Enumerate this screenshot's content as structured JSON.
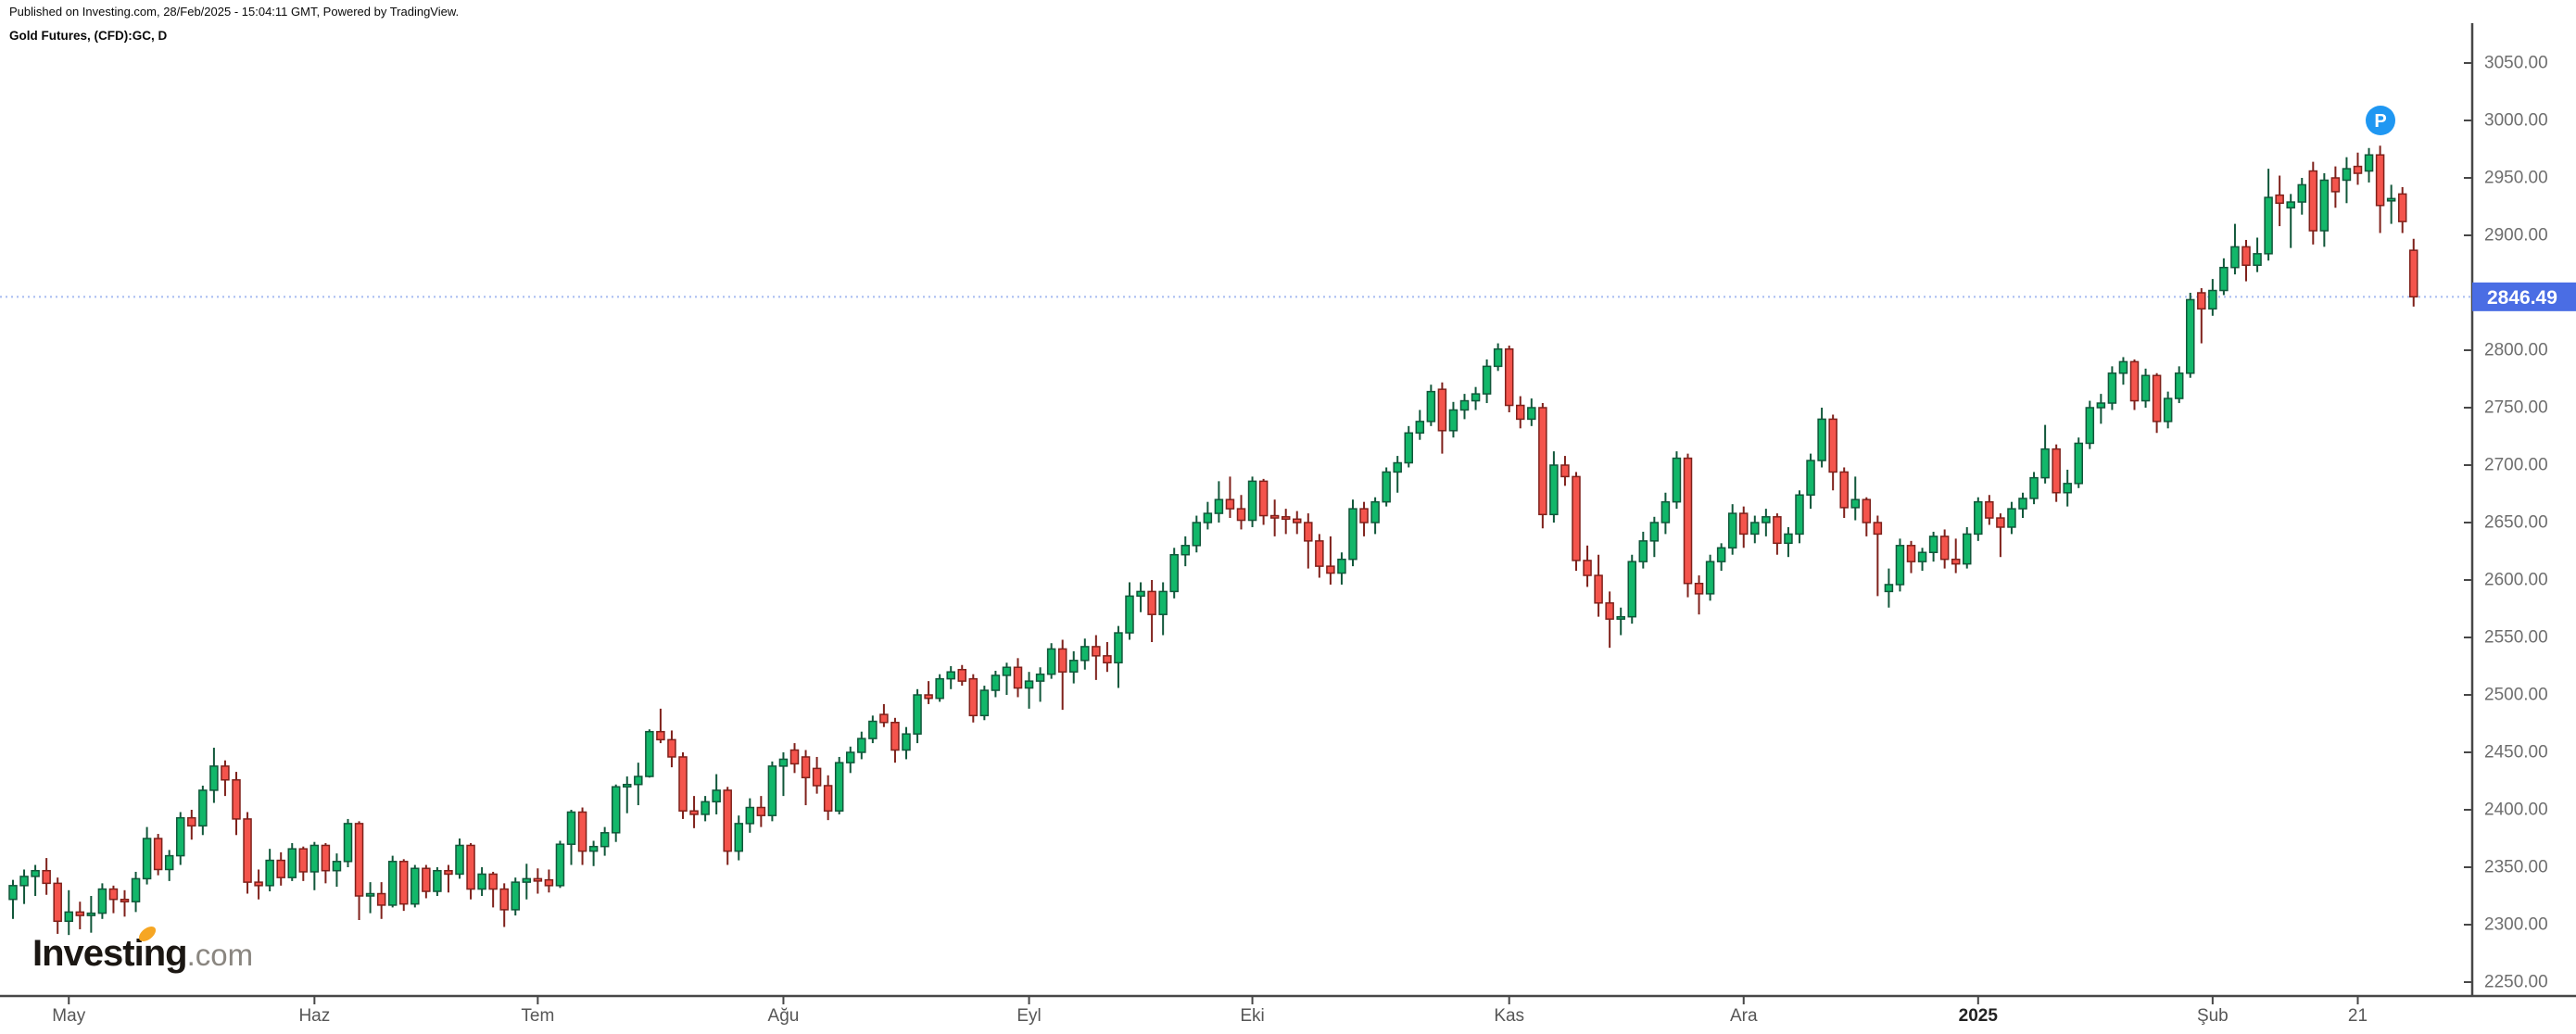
{
  "header": {
    "published": "Published on Investing.com, 28/Feb/2025 - 15:04:11 GMT, Powered by TradingView.",
    "instrument": "Gold Futures, (CFD):GC, D"
  },
  "watermark": {
    "brand": "Investing",
    "suffix": ".com",
    "accent_color": "#f6a623"
  },
  "marker": {
    "label": "P"
  },
  "price_line": {
    "label": "2846.49",
    "price": 2846.49
  },
  "y_axis": {
    "labels": [
      "3050.00",
      "3000.00",
      "2950.00",
      "2900.00",
      "2800.00",
      "2750.00",
      "2700.00",
      "2650.00",
      "2600.00",
      "2550.00",
      "2500.00",
      "2450.00",
      "2400.00",
      "2350.00",
      "2300.00",
      "2250.00"
    ]
  },
  "x_axis": {
    "ticks": [
      {
        "label": "May",
        "index": 5,
        "bold": false
      },
      {
        "label": "Haz",
        "index": 27,
        "bold": false
      },
      {
        "label": "Tem",
        "index": 47,
        "bold": false
      },
      {
        "label": "Ağu",
        "index": 69,
        "bold": false
      },
      {
        "label": "Eyl",
        "index": 91,
        "bold": false
      },
      {
        "label": "Eki",
        "index": 111,
        "bold": false
      },
      {
        "label": "Kas",
        "index": 134,
        "bold": false
      },
      {
        "label": "Ara",
        "index": 155,
        "bold": false
      },
      {
        "label": "2025",
        "index": 176,
        "bold": true
      },
      {
        "label": "Şub",
        "index": 197,
        "bold": false
      },
      {
        "label": "21",
        "index": 210,
        "bold": false
      }
    ]
  },
  "colors": {
    "up": {
      "fill": "#12b76a",
      "stroke": "#11573a"
    },
    "down": {
      "fill": "#f4544c",
      "stroke": "#7f211b"
    },
    "axis_line": "#474747",
    "axis_text": "#6e6e6e",
    "month_text": "#565656",
    "year_text": "#222222",
    "price_line": "#a6bbf0",
    "price_label_bg": "#4a6de4",
    "price_label_text": "#ffffff",
    "marker_bg": "#1f97f2",
    "marker_text": "#ffffff",
    "logo_main": "#1b1713",
    "logo_suffix": "#8a8680",
    "header_text": "#0a0a0a"
  },
  "chart_data": {
    "type": "candlestick",
    "symbol": "Gold Futures (CFD):GC",
    "interval": "D",
    "last_price": 2846.49,
    "ylim": [
      2250,
      3050
    ],
    "y_tick_step": 50,
    "x_tick_labels": [
      "May",
      "Haz",
      "Tem",
      "Ağu",
      "Eyl",
      "Eki",
      "Kas",
      "Ara",
      "2025",
      "Şub",
      "21"
    ],
    "legend_position": "none",
    "grid": false,
    "candles": [
      [
        2322,
        2339,
        2305,
        2334
      ],
      [
        2334,
        2348,
        2318,
        2342
      ],
      [
        2342,
        2352,
        2325,
        2347
      ],
      [
        2347,
        2358,
        2326,
        2336
      ],
      [
        2336,
        2341,
        2292,
        2303
      ],
      [
        2303,
        2330,
        2291,
        2311
      ],
      [
        2311,
        2320,
        2296,
        2308
      ],
      [
        2308,
        2325,
        2293,
        2310
      ],
      [
        2310,
        2336,
        2305,
        2331
      ],
      [
        2331,
        2334,
        2310,
        2322
      ],
      [
        2322,
        2330,
        2307,
        2320
      ],
      [
        2320,
        2346,
        2311,
        2340
      ],
      [
        2340,
        2385,
        2335,
        2375
      ],
      [
        2375,
        2379,
        2343,
        2348
      ],
      [
        2348,
        2365,
        2338,
        2360
      ],
      [
        2360,
        2398,
        2352,
        2393
      ],
      [
        2393,
        2400,
        2374,
        2386
      ],
      [
        2386,
        2421,
        2378,
        2417
      ],
      [
        2417,
        2454,
        2406,
        2438
      ],
      [
        2438,
        2443,
        2412,
        2426
      ],
      [
        2426,
        2433,
        2378,
        2392
      ],
      [
        2392,
        2398,
        2327,
        2337
      ],
      [
        2337,
        2348,
        2322,
        2334
      ],
      [
        2334,
        2366,
        2329,
        2356
      ],
      [
        2356,
        2363,
        2334,
        2341
      ],
      [
        2341,
        2371,
        2338,
        2366
      ],
      [
        2366,
        2368,
        2338,
        2346
      ],
      [
        2346,
        2372,
        2330,
        2369
      ],
      [
        2369,
        2371,
        2336,
        2347
      ],
      [
        2347,
        2362,
        2333,
        2355
      ],
      [
        2355,
        2392,
        2350,
        2388
      ],
      [
        2388,
        2390,
        2304,
        2325
      ],
      [
        2325,
        2337,
        2310,
        2327
      ],
      [
        2327,
        2337,
        2305,
        2317
      ],
      [
        2317,
        2360,
        2315,
        2355
      ],
      [
        2355,
        2357,
        2312,
        2318
      ],
      [
        2318,
        2352,
        2315,
        2349
      ],
      [
        2349,
        2352,
        2323,
        2329
      ],
      [
        2329,
        2350,
        2325,
        2347
      ],
      [
        2347,
        2352,
        2328,
        2344
      ],
      [
        2344,
        2375,
        2340,
        2369
      ],
      [
        2369,
        2371,
        2322,
        2331
      ],
      [
        2331,
        2350,
        2325,
        2344
      ],
      [
        2344,
        2346,
        2315,
        2331
      ],
      [
        2331,
        2336,
        2298,
        2313
      ],
      [
        2313,
        2341,
        2308,
        2337
      ],
      [
        2337,
        2353,
        2322,
        2340
      ],
      [
        2340,
        2349,
        2327,
        2339
      ],
      [
        2339,
        2348,
        2328,
        2334
      ],
      [
        2334,
        2373,
        2332,
        2370
      ],
      [
        2370,
        2400,
        2352,
        2398
      ],
      [
        2398,
        2402,
        2352,
        2364
      ],
      [
        2364,
        2373,
        2351,
        2368
      ],
      [
        2368,
        2385,
        2360,
        2380
      ],
      [
        2380,
        2422,
        2372,
        2420
      ],
      [
        2420,
        2429,
        2397,
        2422
      ],
      [
        2422,
        2441,
        2404,
        2429
      ],
      [
        2429,
        2470,
        2428,
        2468
      ],
      [
        2468,
        2488,
        2458,
        2461
      ],
      [
        2461,
        2469,
        2437,
        2446
      ],
      [
        2446,
        2450,
        2392,
        2399
      ],
      [
        2399,
        2412,
        2384,
        2396
      ],
      [
        2396,
        2412,
        2390,
        2407
      ],
      [
        2407,
        2431,
        2396,
        2417
      ],
      [
        2417,
        2420,
        2352,
        2364
      ],
      [
        2364,
        2395,
        2356,
        2388
      ],
      [
        2388,
        2410,
        2380,
        2402
      ],
      [
        2402,
        2412,
        2385,
        2395
      ],
      [
        2395,
        2442,
        2390,
        2438
      ],
      [
        2438,
        2450,
        2412,
        2444
      ],
      [
        2452,
        2458,
        2432,
        2440
      ],
      [
        2446,
        2452,
        2404,
        2428
      ],
      [
        2436,
        2446,
        2414,
        2421
      ],
      [
        2421,
        2430,
        2391,
        2399
      ],
      [
        2399,
        2446,
        2396,
        2441
      ],
      [
        2441,
        2455,
        2432,
        2450
      ],
      [
        2450,
        2468,
        2444,
        2462
      ],
      [
        2462,
        2482,
        2458,
        2477
      ],
      [
        2483,
        2492,
        2472,
        2476
      ],
      [
        2476,
        2480,
        2441,
        2452
      ],
      [
        2452,
        2472,
        2444,
        2466
      ],
      [
        2466,
        2505,
        2458,
        2500
      ],
      [
        2500,
        2512,
        2492,
        2497
      ],
      [
        2497,
        2518,
        2494,
        2514
      ],
      [
        2514,
        2525,
        2505,
        2520
      ],
      [
        2522,
        2526,
        2508,
        2512
      ],
      [
        2514,
        2518,
        2476,
        2482
      ],
      [
        2482,
        2508,
        2478,
        2504
      ],
      [
        2504,
        2521,
        2498,
        2517
      ],
      [
        2517,
        2528,
        2500,
        2524
      ],
      [
        2524,
        2532,
        2498,
        2506
      ],
      [
        2506,
        2520,
        2488,
        2512
      ],
      [
        2512,
        2524,
        2494,
        2518
      ],
      [
        2518,
        2545,
        2514,
        2540
      ],
      [
        2540,
        2548,
        2487,
        2520
      ],
      [
        2520,
        2538,
        2510,
        2530
      ],
      [
        2530,
        2549,
        2522,
        2542
      ],
      [
        2542,
        2552,
        2513,
        2534
      ],
      [
        2534,
        2546,
        2520,
        2528
      ],
      [
        2528,
        2560,
        2506,
        2554
      ],
      [
        2554,
        2598,
        2548,
        2586
      ],
      [
        2586,
        2598,
        2572,
        2590
      ],
      [
        2590,
        2600,
        2546,
        2570
      ],
      [
        2570,
        2598,
        2552,
        2590
      ],
      [
        2590,
        2628,
        2584,
        2622
      ],
      [
        2622,
        2638,
        2612,
        2630
      ],
      [
        2630,
        2656,
        2624,
        2650
      ],
      [
        2650,
        2668,
        2644,
        2658
      ],
      [
        2658,
        2686,
        2650,
        2670
      ],
      [
        2670,
        2690,
        2654,
        2662
      ],
      [
        2662,
        2674,
        2644,
        2652
      ],
      [
        2652,
        2690,
        2646,
        2686
      ],
      [
        2686,
        2688,
        2648,
        2656
      ],
      [
        2656,
        2670,
        2638,
        2655
      ],
      [
        2655,
        2662,
        2640,
        2653
      ],
      [
        2653,
        2660,
        2640,
        2650
      ],
      [
        2650,
        2658,
        2610,
        2634
      ],
      [
        2634,
        2640,
        2602,
        2612
      ],
      [
        2612,
        2638,
        2596,
        2606
      ],
      [
        2606,
        2624,
        2596,
        2618
      ],
      [
        2618,
        2670,
        2612,
        2662
      ],
      [
        2662,
        2668,
        2638,
        2650
      ],
      [
        2650,
        2672,
        2640,
        2668
      ],
      [
        2668,
        2698,
        2664,
        2694
      ],
      [
        2694,
        2708,
        2676,
        2702
      ],
      [
        2702,
        2734,
        2698,
        2728
      ],
      [
        2728,
        2748,
        2722,
        2738
      ],
      [
        2738,
        2770,
        2734,
        2764
      ],
      [
        2766,
        2772,
        2710,
        2730
      ],
      [
        2730,
        2755,
        2724,
        2748
      ],
      [
        2748,
        2762,
        2740,
        2756
      ],
      [
        2756,
        2768,
        2748,
        2762
      ],
      [
        2762,
        2792,
        2754,
        2786
      ],
      [
        2786,
        2806,
        2782,
        2801
      ],
      [
        2801,
        2804,
        2746,
        2752
      ],
      [
        2752,
        2760,
        2732,
        2740
      ],
      [
        2740,
        2758,
        2734,
        2750
      ],
      [
        2750,
        2754,
        2645,
        2657
      ],
      [
        2657,
        2712,
        2650,
        2700
      ],
      [
        2700,
        2708,
        2682,
        2690
      ],
      [
        2690,
        2694,
        2608,
        2617
      ],
      [
        2617,
        2630,
        2594,
        2604
      ],
      [
        2604,
        2622,
        2568,
        2580
      ],
      [
        2580,
        2590,
        2541,
        2566
      ],
      [
        2566,
        2576,
        2552,
        2568
      ],
      [
        2568,
        2622,
        2562,
        2616
      ],
      [
        2616,
        2642,
        2610,
        2634
      ],
      [
        2634,
        2655,
        2620,
        2650
      ],
      [
        2650,
        2676,
        2640,
        2668
      ],
      [
        2668,
        2712,
        2662,
        2706
      ],
      [
        2706,
        2710,
        2585,
        2597
      ],
      [
        2597,
        2604,
        2570,
        2588
      ],
      [
        2588,
        2622,
        2582,
        2616
      ],
      [
        2616,
        2632,
        2608,
        2628
      ],
      [
        2628,
        2666,
        2622,
        2658
      ],
      [
        2658,
        2664,
        2628,
        2640
      ],
      [
        2640,
        2656,
        2632,
        2650
      ],
      [
        2650,
        2662,
        2638,
        2655
      ],
      [
        2655,
        2658,
        2622,
        2632
      ],
      [
        2632,
        2646,
        2620,
        2640
      ],
      [
        2640,
        2678,
        2632,
        2674
      ],
      [
        2674,
        2710,
        2662,
        2704
      ],
      [
        2704,
        2750,
        2698,
        2740
      ],
      [
        2740,
        2744,
        2678,
        2694
      ],
      [
        2694,
        2698,
        2654,
        2663
      ],
      [
        2663,
        2690,
        2652,
        2670
      ],
      [
        2670,
        2672,
        2638,
        2650
      ],
      [
        2650,
        2656,
        2586,
        2640
      ],
      [
        2590,
        2610,
        2576,
        2596
      ],
      [
        2596,
        2636,
        2590,
        2630
      ],
      [
        2630,
        2634,
        2606,
        2616
      ],
      [
        2616,
        2628,
        2608,
        2624
      ],
      [
        2624,
        2642,
        2616,
        2638
      ],
      [
        2638,
        2644,
        2610,
        2618
      ],
      [
        2618,
        2636,
        2606,
        2614
      ],
      [
        2614,
        2646,
        2610,
        2640
      ],
      [
        2640,
        2672,
        2634,
        2668
      ],
      [
        2668,
        2674,
        2648,
        2654
      ],
      [
        2654,
        2658,
        2620,
        2646
      ],
      [
        2646,
        2668,
        2640,
        2662
      ],
      [
        2662,
        2676,
        2654,
        2671
      ],
      [
        2671,
        2694,
        2666,
        2689
      ],
      [
        2689,
        2735,
        2684,
        2714
      ],
      [
        2714,
        2718,
        2668,
        2676
      ],
      [
        2676,
        2696,
        2664,
        2684
      ],
      [
        2684,
        2724,
        2680,
        2719
      ],
      [
        2719,
        2756,
        2714,
        2750
      ],
      [
        2750,
        2762,
        2736,
        2754
      ],
      [
        2754,
        2786,
        2748,
        2780
      ],
      [
        2780,
        2794,
        2770,
        2790
      ],
      [
        2790,
        2792,
        2748,
        2756
      ],
      [
        2756,
        2784,
        2750,
        2778
      ],
      [
        2778,
        2780,
        2728,
        2738
      ],
      [
        2738,
        2764,
        2732,
        2758
      ],
      [
        2758,
        2786,
        2754,
        2780
      ],
      [
        2780,
        2850,
        2776,
        2844
      ],
      [
        2850,
        2854,
        2806,
        2836
      ],
      [
        2836,
        2862,
        2830,
        2852
      ],
      [
        2852,
        2880,
        2848,
        2872
      ],
      [
        2872,
        2910,
        2866,
        2890
      ],
      [
        2890,
        2896,
        2860,
        2874
      ],
      [
        2874,
        2898,
        2868,
        2884
      ],
      [
        2884,
        2958,
        2878,
        2933
      ],
      [
        2935,
        2952,
        2908,
        2928
      ],
      [
        2924,
        2936,
        2889,
        2929
      ],
      [
        2929,
        2950,
        2918,
        2944
      ],
      [
        2956,
        2964,
        2892,
        2904
      ],
      [
        2904,
        2954,
        2890,
        2948
      ],
      [
        2950,
        2960,
        2924,
        2938
      ],
      [
        2948,
        2968,
        2928,
        2958
      ],
      [
        2960,
        2972,
        2944,
        2954
      ],
      [
        2956,
        2976,
        2946,
        2970
      ],
      [
        2970,
        2978,
        2902,
        2926
      ],
      [
        2930,
        2944,
        2910,
        2932
      ],
      [
        2936,
        2942,
        2902,
        2912
      ],
      [
        2887,
        2897,
        2838,
        2846.49
      ]
    ]
  }
}
